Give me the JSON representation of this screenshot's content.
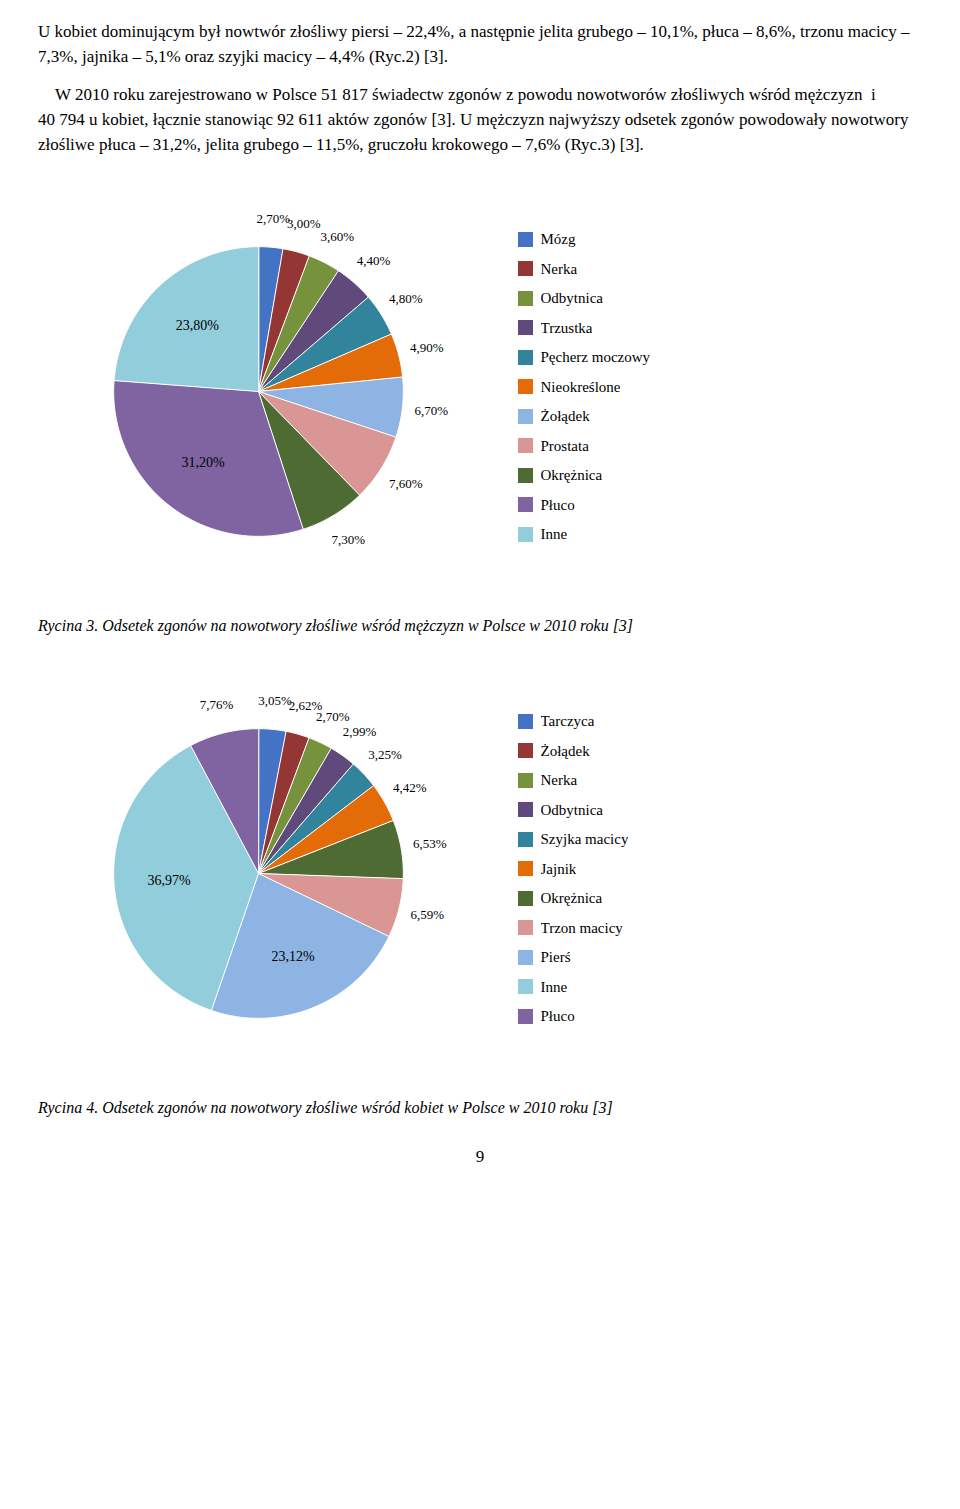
{
  "page_text": [
    "U kobiet dominującym był nowtwór złośliwy piersi – 22,4%, a następnie jelita grubego – 10,1%, płuca – 8,6%, trzonu macicy – 7,3%, jajnika – 5,1% oraz szyjki macicy – 4,4% (Ryc.2) [3].",
    "    W 2010 roku zarejestrowano w Polsce 51 817 świadectw zgonów z powodu nowotworów złośliwych wśród mężczyzn  i 40 794 u kobiet, łącznie stanowiąc 92 611 aktów zgonów [3]. U mężczyzn najwyższy odsetek zgonów powodowały nowotwory złośliwe płuca – 31,2%, jelita grubego – 11,5%, gruczołu krokowego – 7,6% (Ryc.3) [3]."
  ],
  "chart_data": [
    {
      "type": "pie",
      "title": "Rycina 3. Odsetek zgonów na nowotwory złośliwe wśród mężczyzn w Polsce w 2010 roku [3]",
      "categories": [
        "Mózg",
        "Nerka",
        "Odbytnica",
        "Trzustka",
        "Pęcherz moczowy",
        "Nieokreślone",
        "Żołądek",
        "Prostata",
        "Okrężnica",
        "Płuco",
        "Inne"
      ],
      "values": [
        2.7,
        3.0,
        3.6,
        4.4,
        4.8,
        4.9,
        6.7,
        7.6,
        7.3,
        31.2,
        23.8
      ],
      "value_labels": [
        "2,70%",
        "3,00%",
        "3,60%",
        "4,40%",
        "4,80%",
        "4,90%",
        "6,70%",
        "7,60%",
        "7,30%",
        "31,20%",
        "23,80%"
      ],
      "colors": [
        "#4472C4",
        "#943634",
        "#76923C",
        "#604A7B",
        "#31849B",
        "#E36C09",
        "#8DB4E2",
        "#DA9694",
        "#4E6B34",
        "#8064A2",
        "#92CDDC"
      ],
      "data_labels": true,
      "legend": "right"
    },
    {
      "type": "pie",
      "title": "Rycina 4. Odsetek zgonów na nowotwory złośliwe wśród kobiet w Polsce w 2010 roku [3]",
      "categories": [
        "Tarczyca",
        "Żołądek",
        "Nerka",
        "Odbytnica",
        "Szyjka macicy",
        "Jajnik",
        "Okrężnica",
        "Trzon macicy",
        "Pierś",
        "Inne",
        "Płuco"
      ],
      "values": [
        3.05,
        2.62,
        2.7,
        2.99,
        3.25,
        4.42,
        6.53,
        6.59,
        23.12,
        36.97,
        7.76
      ],
      "value_labels": [
        "3,05%",
        "2,62%",
        "2,70%",
        "2,99%",
        "3,25%",
        "4,42%",
        "6,53%",
        "6,59%",
        "23,12%",
        "36,97%",
        "7,76%"
      ],
      "colors": [
        "#4472C4",
        "#943634",
        "#76923C",
        "#604A7B",
        "#31849B",
        "#E36C09",
        "#4E6B34",
        "#DA9694",
        "#8DB4E2",
        "#92CDDC",
        "#8064A2"
      ],
      "data_labels": true,
      "legend": "right"
    }
  ],
  "page_number": "9"
}
